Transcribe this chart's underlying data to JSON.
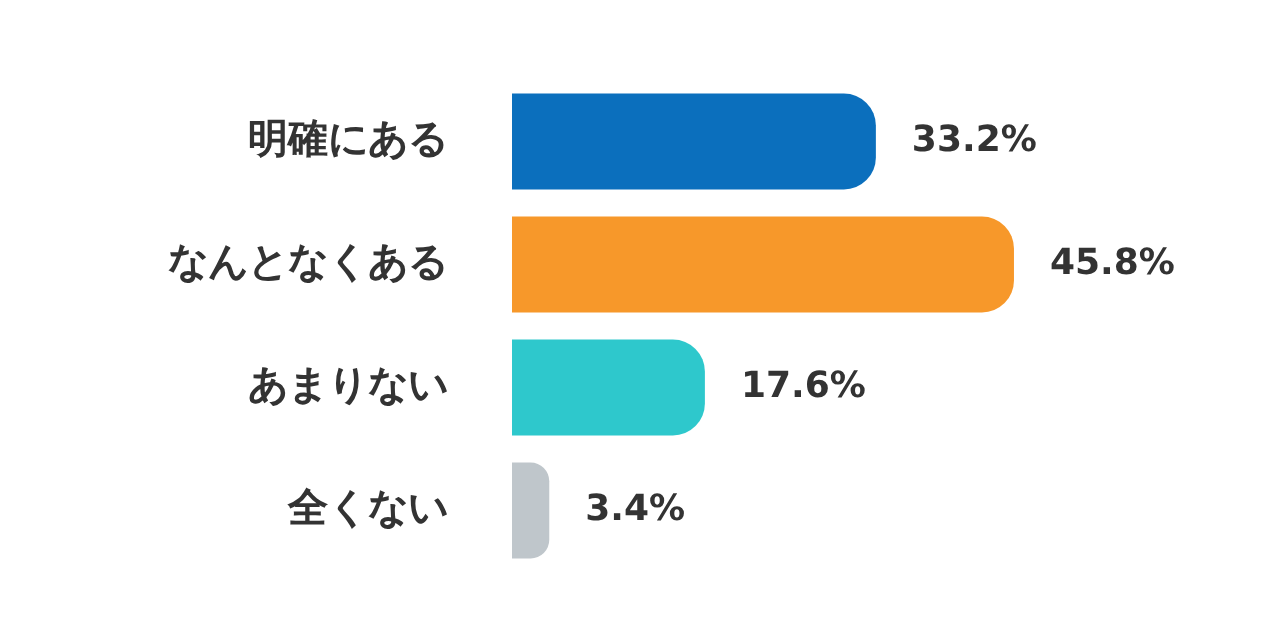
{
  "chart_data": {
    "type": "bar",
    "orientation": "horizontal",
    "categories": [
      "明確にある",
      "なんとなくある",
      "あまりない",
      "全くない"
    ],
    "values": [
      33.2,
      45.8,
      17.6,
      3.4
    ],
    "colors": [
      "#0b6fbd",
      "#f7982a",
      "#2ec8cc",
      "#bfc6cb"
    ],
    "value_labels": [
      "33.2%",
      "45.8%",
      "17.6%",
      "3.4%"
    ],
    "legend": false
  }
}
